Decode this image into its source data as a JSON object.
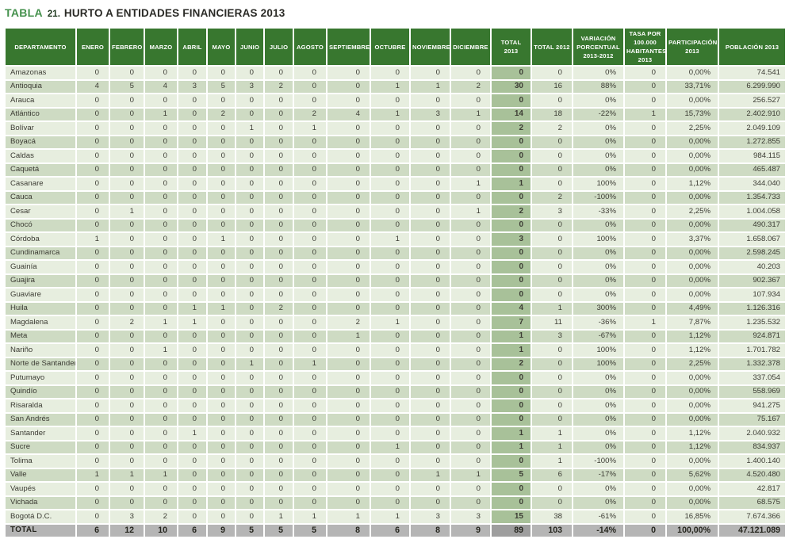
{
  "title": {
    "label": "TABLA",
    "number": "21.",
    "text": "HURTO A ENTIDADES FINANCIERAS 2013"
  },
  "colors": {
    "title_green": "#44914c",
    "header_green": "#38772f",
    "row_light": "#e7eedf",
    "row_dark": "#cedbc3",
    "total_2013_column": "#a8c199",
    "total_row_gray": "#b5b5b5",
    "total_row_total_cell": "#9e9e9e"
  },
  "table": {
    "columns": [
      "DEPARTAMENTO",
      "ENERO",
      "FEBRERO",
      "MARZO",
      "ABRIL",
      "MAYO",
      "JUNIO",
      "JULIO",
      "AGOSTO",
      "SEPTIEMBRE",
      "OCTUBRE",
      "NOVIEMBRE",
      "DICIEMBRE",
      "TOTAL 2013",
      "TOTAL 2012",
      "VARIACIÓN PORCENTUAL 2013-2012",
      "TASA POR 100.000 HABITANTES 2013",
      "PARTICIPACIÓN 2013",
      "POBLACIÓN 2013"
    ],
    "rows": [
      [
        "Amazonas",
        "0",
        "0",
        "0",
        "0",
        "0",
        "0",
        "0",
        "0",
        "0",
        "0",
        "0",
        "0",
        "0",
        "0",
        "0%",
        "0",
        "0,00%",
        "74.541"
      ],
      [
        "Antioquia",
        "4",
        "5",
        "4",
        "3",
        "5",
        "3",
        "2",
        "0",
        "0",
        "1",
        "1",
        "2",
        "30",
        "16",
        "88%",
        "0",
        "33,71%",
        "6.299.990"
      ],
      [
        "Arauca",
        "0",
        "0",
        "0",
        "0",
        "0",
        "0",
        "0",
        "0",
        "0",
        "0",
        "0",
        "0",
        "0",
        "0",
        "0%",
        "0",
        "0,00%",
        "256.527"
      ],
      [
        "Atlántico",
        "0",
        "0",
        "1",
        "0",
        "2",
        "0",
        "0",
        "2",
        "4",
        "1",
        "3",
        "1",
        "14",
        "18",
        "-22%",
        "1",
        "15,73%",
        "2.402.910"
      ],
      [
        "Bolívar",
        "0",
        "0",
        "0",
        "0",
        "0",
        "1",
        "0",
        "1",
        "0",
        "0",
        "0",
        "0",
        "2",
        "2",
        "0%",
        "0",
        "2,25%",
        "2.049.109"
      ],
      [
        "Boyacá",
        "0",
        "0",
        "0",
        "0",
        "0",
        "0",
        "0",
        "0",
        "0",
        "0",
        "0",
        "0",
        "0",
        "0",
        "0%",
        "0",
        "0,00%",
        "1.272.855"
      ],
      [
        "Caldas",
        "0",
        "0",
        "0",
        "0",
        "0",
        "0",
        "0",
        "0",
        "0",
        "0",
        "0",
        "0",
        "0",
        "0",
        "0%",
        "0",
        "0,00%",
        "984.115"
      ],
      [
        "Caquetá",
        "0",
        "0",
        "0",
        "0",
        "0",
        "0",
        "0",
        "0",
        "0",
        "0",
        "0",
        "0",
        "0",
        "0",
        "0%",
        "0",
        "0,00%",
        "465.487"
      ],
      [
        "Casanare",
        "0",
        "0",
        "0",
        "0",
        "0",
        "0",
        "0",
        "0",
        "0",
        "0",
        "0",
        "1",
        "1",
        "0",
        "100%",
        "0",
        "1,12%",
        "344.040"
      ],
      [
        "Cauca",
        "0",
        "0",
        "0",
        "0",
        "0",
        "0",
        "0",
        "0",
        "0",
        "0",
        "0",
        "0",
        "0",
        "2",
        "-100%",
        "0",
        "0,00%",
        "1.354.733"
      ],
      [
        "Cesar",
        "0",
        "1",
        "0",
        "0",
        "0",
        "0",
        "0",
        "0",
        "0",
        "0",
        "0",
        "1",
        "2",
        "3",
        "-33%",
        "0",
        "2,25%",
        "1.004.058"
      ],
      [
        "Chocó",
        "0",
        "0",
        "0",
        "0",
        "0",
        "0",
        "0",
        "0",
        "0",
        "0",
        "0",
        "0",
        "0",
        "0",
        "0%",
        "0",
        "0,00%",
        "490.317"
      ],
      [
        "Córdoba",
        "1",
        "0",
        "0",
        "0",
        "1",
        "0",
        "0",
        "0",
        "0",
        "1",
        "0",
        "0",
        "3",
        "0",
        "100%",
        "0",
        "3,37%",
        "1.658.067"
      ],
      [
        "Cundinamarca",
        "0",
        "0",
        "0",
        "0",
        "0",
        "0",
        "0",
        "0",
        "0",
        "0",
        "0",
        "0",
        "0",
        "0",
        "0%",
        "0",
        "0,00%",
        "2.598.245"
      ],
      [
        "Guainía",
        "0",
        "0",
        "0",
        "0",
        "0",
        "0",
        "0",
        "0",
        "0",
        "0",
        "0",
        "0",
        "0",
        "0",
        "0%",
        "0",
        "0,00%",
        "40.203"
      ],
      [
        "Guajira",
        "0",
        "0",
        "0",
        "0",
        "0",
        "0",
        "0",
        "0",
        "0",
        "0",
        "0",
        "0",
        "0",
        "0",
        "0%",
        "0",
        "0,00%",
        "902.367"
      ],
      [
        "Guaviare",
        "0",
        "0",
        "0",
        "0",
        "0",
        "0",
        "0",
        "0",
        "0",
        "0",
        "0",
        "0",
        "0",
        "0",
        "0%",
        "0",
        "0,00%",
        "107.934"
      ],
      [
        "Huila",
        "0",
        "0",
        "0",
        "1",
        "1",
        "0",
        "2",
        "0",
        "0",
        "0",
        "0",
        "0",
        "4",
        "1",
        "300%",
        "0",
        "4,49%",
        "1.126.316"
      ],
      [
        "Magdalena",
        "0",
        "2",
        "1",
        "1",
        "0",
        "0",
        "0",
        "0",
        "2",
        "1",
        "0",
        "0",
        "7",
        "11",
        "-36%",
        "1",
        "7,87%",
        "1.235.532"
      ],
      [
        "Meta",
        "0",
        "0",
        "0",
        "0",
        "0",
        "0",
        "0",
        "0",
        "1",
        "0",
        "0",
        "0",
        "1",
        "3",
        "-67%",
        "0",
        "1,12%",
        "924.871"
      ],
      [
        "Nariño",
        "0",
        "0",
        "1",
        "0",
        "0",
        "0",
        "0",
        "0",
        "0",
        "0",
        "0",
        "0",
        "1",
        "0",
        "100%",
        "0",
        "1,12%",
        "1.701.782"
      ],
      [
        "Norte de Santander",
        "0",
        "0",
        "0",
        "0",
        "0",
        "1",
        "0",
        "1",
        "0",
        "0",
        "0",
        "0",
        "2",
        "0",
        "100%",
        "0",
        "2,25%",
        "1.332.378"
      ],
      [
        "Putumayo",
        "0",
        "0",
        "0",
        "0",
        "0",
        "0",
        "0",
        "0",
        "0",
        "0",
        "0",
        "0",
        "0",
        "0",
        "0%",
        "0",
        "0,00%",
        "337.054"
      ],
      [
        "Quindío",
        "0",
        "0",
        "0",
        "0",
        "0",
        "0",
        "0",
        "0",
        "0",
        "0",
        "0",
        "0",
        "0",
        "0",
        "0%",
        "0",
        "0,00%",
        "558.969"
      ],
      [
        "Risaralda",
        "0",
        "0",
        "0",
        "0",
        "0",
        "0",
        "0",
        "0",
        "0",
        "0",
        "0",
        "0",
        "0",
        "0",
        "0%",
        "0",
        "0,00%",
        "941.275"
      ],
      [
        "San Andrés",
        "0",
        "0",
        "0",
        "0",
        "0",
        "0",
        "0",
        "0",
        "0",
        "0",
        "0",
        "0",
        "0",
        "0",
        "0%",
        "0",
        "0,00%",
        "75.167"
      ],
      [
        "Santander",
        "0",
        "0",
        "0",
        "1",
        "0",
        "0",
        "0",
        "0",
        "0",
        "0",
        "0",
        "0",
        "1",
        "1",
        "0%",
        "0",
        "1,12%",
        "2.040.932"
      ],
      [
        "Sucre",
        "0",
        "0",
        "0",
        "0",
        "0",
        "0",
        "0",
        "0",
        "0",
        "1",
        "0",
        "0",
        "1",
        "1",
        "0%",
        "0",
        "1,12%",
        "834.937"
      ],
      [
        "Tolima",
        "0",
        "0",
        "0",
        "0",
        "0",
        "0",
        "0",
        "0",
        "0",
        "0",
        "0",
        "0",
        "0",
        "1",
        "-100%",
        "0",
        "0,00%",
        "1.400.140"
      ],
      [
        "Valle",
        "1",
        "1",
        "1",
        "0",
        "0",
        "0",
        "0",
        "0",
        "0",
        "0",
        "1",
        "1",
        "5",
        "6",
        "-17%",
        "0",
        "5,62%",
        "4.520.480"
      ],
      [
        "Vaupés",
        "0",
        "0",
        "0",
        "0",
        "0",
        "0",
        "0",
        "0",
        "0",
        "0",
        "0",
        "0",
        "0",
        "0",
        "0%",
        "0",
        "0,00%",
        "42.817"
      ],
      [
        "Vichada",
        "0",
        "0",
        "0",
        "0",
        "0",
        "0",
        "0",
        "0",
        "0",
        "0",
        "0",
        "0",
        "0",
        "0",
        "0%",
        "0",
        "0,00%",
        "68.575"
      ],
      [
        "Bogotá D.C.",
        "0",
        "3",
        "2",
        "0",
        "0",
        "0",
        "1",
        "1",
        "1",
        "1",
        "3",
        "3",
        "15",
        "38",
        "-61%",
        "0",
        "16,85%",
        "7.674.366"
      ]
    ],
    "total_row": [
      "TOTAL",
      "6",
      "12",
      "10",
      "6",
      "9",
      "5",
      "5",
      "5",
      "8",
      "6",
      "8",
      "9",
      "89",
      "103",
      "-14%",
      "0",
      "100,00%",
      "47.121.089"
    ]
  }
}
